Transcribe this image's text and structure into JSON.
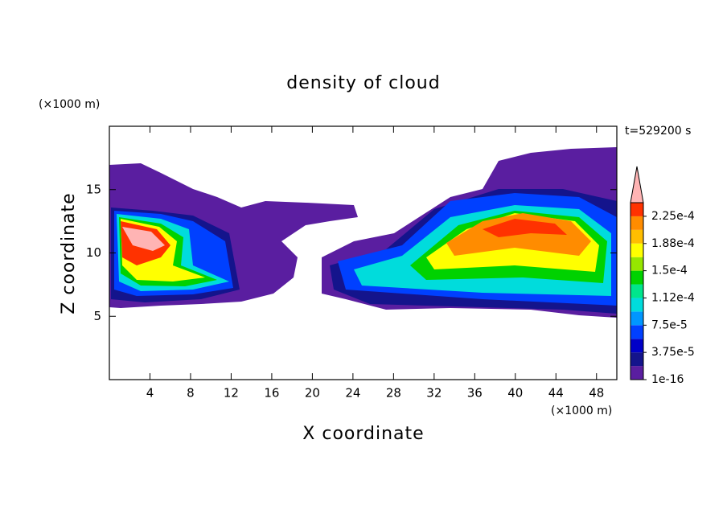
{
  "chart_data": {
    "type": "contour",
    "title": "density of cloud",
    "x_label": "X coordinate",
    "y_label": "Z coordinate",
    "x_unit": "(×1000 m)",
    "y_unit": "(×1000 m)",
    "annotation": "t=529200 s",
    "xlim": [
      0,
      50
    ],
    "ylim": [
      0,
      20
    ],
    "xticks": [
      4,
      8,
      12,
      16,
      20,
      24,
      28,
      32,
      36,
      40,
      44,
      48
    ],
    "yticks": [
      5,
      10,
      15
    ],
    "colorbar": {
      "levels": [
        1e-16,
        1.875e-05,
        3.75e-05,
        5.625e-05,
        7.5e-05,
        9.375e-05,
        0.0001125,
        0.00013125,
        0.00015,
        0.00016875,
        0.0001875,
        0.00020625,
        0.000225,
        0.00024375
      ],
      "colors": [
        "#5a1ea0",
        "#14148c",
        "#0000c8",
        "#0040ff",
        "#0096ff",
        "#00dcdc",
        "#00e68c",
        "#00d200",
        "#96e600",
        "#ffff00",
        "#ffbe00",
        "#ff8c00",
        "#ff3200"
      ],
      "over_color": "#ffb4b4",
      "ticks": [
        {
          "value": 1e-16,
          "label": "1e-16"
        },
        {
          "value": 3.75e-05,
          "label": "3.75e-5"
        },
        {
          "value": 7.5e-05,
          "label": "7.5e-5"
        },
        {
          "value": 0.0001125,
          "label": "1.12e-4"
        },
        {
          "value": 0.00015,
          "label": "1.5e-4"
        },
        {
          "value": 0.0001875,
          "label": "1.88e-4"
        },
        {
          "value": 0.000225,
          "label": "2.25e-4"
        }
      ]
    }
  }
}
